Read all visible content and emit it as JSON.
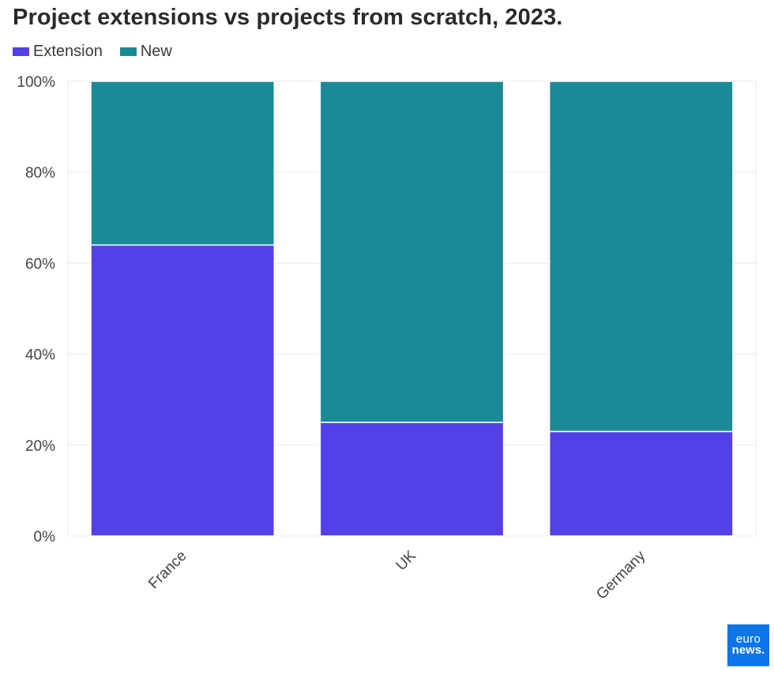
{
  "colors": {
    "extension": "#5340e6",
    "new": "#1b8a96",
    "grid": "#e8e8e8",
    "logo_bg": "#0d75e8"
  },
  "logo": {
    "line1": "euro",
    "line2": "news."
  },
  "chart_data": {
    "type": "bar",
    "stacked": true,
    "title": "Project extensions vs projects from scratch, 2023.",
    "xlabel": "",
    "ylabel": "",
    "ylim": [
      0,
      100
    ],
    "yticks": [
      0,
      20,
      40,
      60,
      80,
      100
    ],
    "ytick_labels": [
      "0%",
      "20%",
      "40%",
      "60%",
      "80%",
      "100%"
    ],
    "legend": "top-left",
    "categories": [
      "France",
      "UK",
      "Germany"
    ],
    "series": [
      {
        "name": "Extension",
        "values": [
          64,
          25,
          23
        ]
      },
      {
        "name": "New",
        "values": [
          36,
          75,
          77
        ]
      }
    ]
  }
}
